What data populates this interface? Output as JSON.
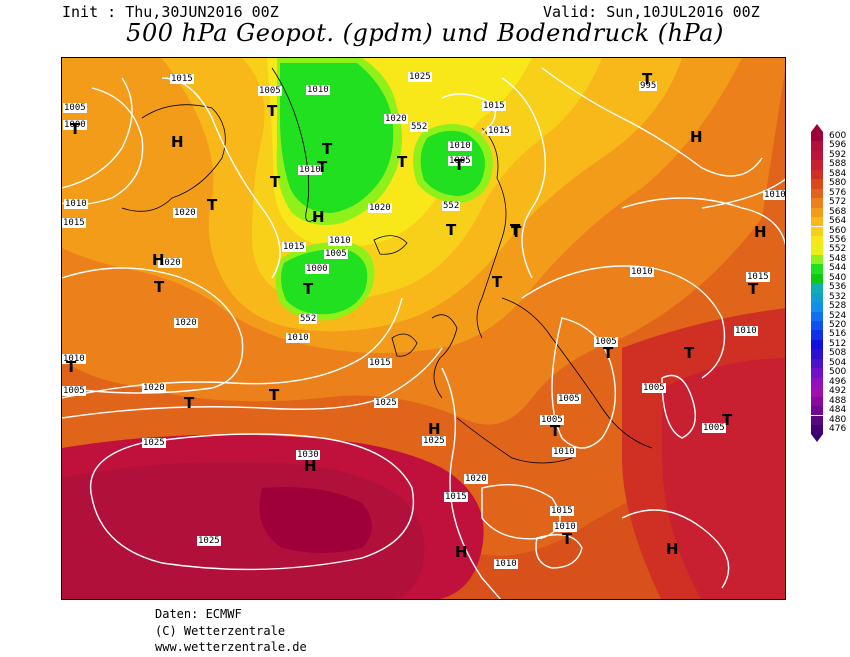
{
  "header": {
    "init": "Init : Thu,30JUN2016 00Z",
    "valid": "Valid: Sun,10JUL2016 00Z",
    "title": "500 hPa Geopot. (gpdm) und Bodendruck (hPa)"
  },
  "footer": {
    "line1": "Daten: ECMWF",
    "line2": "(C) Wetterzentrale",
    "line3": "www.wetterzentrale.de"
  },
  "legend": {
    "labels": [
      "600",
      "596",
      "592",
      "588",
      "584",
      "580",
      "576",
      "572",
      "568",
      "564",
      "560",
      "556",
      "552",
      "548",
      "544",
      "540",
      "536",
      "532",
      "528",
      "524",
      "520",
      "516",
      "512",
      "508",
      "504",
      "500",
      "496",
      "492",
      "488",
      "484",
      "480",
      "476"
    ],
    "colors": [
      "#a0003a",
      "#b0103a",
      "#c0103c",
      "#c82030",
      "#d03024",
      "#d84a1a",
      "#e0641a",
      "#ec801a",
      "#f29c1a",
      "#f8b81a",
      "#f8d01a",
      "#f8e81a",
      "#e8f01a",
      "#90f01a",
      "#20e020",
      "#10c810",
      "#10b0b0",
      "#10a0d0",
      "#1090e8",
      "#1070f0",
      "#1050f0",
      "#1030e8",
      "#1010e0",
      "#3010d0",
      "#5010c8",
      "#7010c8",
      "#9010c0",
      "#a010b0",
      "#8a0aa0",
      "#700890",
      "#580880",
      "#400070"
    ]
  },
  "map": {
    "pressure_labels": [
      "1015",
      "1005",
      "1010",
      "1025",
      "995",
      "1000",
      "1020",
      "1015",
      "1005",
      "1010",
      "1020",
      "552",
      "1010",
      "1015",
      "1005",
      "1015",
      "1010",
      "1010",
      "1020",
      "552",
      "1005",
      "1020",
      "1010",
      "1015",
      "1000",
      "1010",
      "552",
      "1010",
      "1020",
      "1015",
      "1020",
      "1025",
      "1005",
      "1015",
      "1010",
      "1005",
      "1005",
      "1005",
      "1025",
      "1025",
      "1030",
      "1010",
      "1005",
      "1020",
      "1015",
      "1015",
      "1010",
      "1025",
      "1010",
      "1010",
      "1005"
    ],
    "symbols": [
      "T",
      "T",
      "H",
      "H",
      "T",
      "T",
      "T",
      "T",
      "T",
      "H",
      "T",
      "T",
      "T",
      "T",
      "T",
      "H",
      "T",
      "T",
      "T",
      "T",
      "T",
      "T",
      "H",
      "T",
      "H",
      "T",
      "T",
      "H",
      "T",
      "T",
      "H",
      "T",
      "H"
    ]
  }
}
